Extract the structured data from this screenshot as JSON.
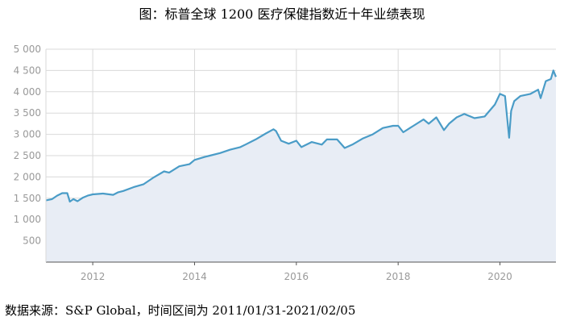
{
  "title": "图：标普全球 1200 医疗保健指数近十年业绩表现",
  "source": "数据来源：S&P Global，时间区间为 2011/01/31-2021/02/05",
  "chart_data": {
    "type": "area",
    "title": "图：标普全球 1200 医疗保健指数近十年业绩表现",
    "xlabel": "",
    "ylabel": "",
    "ylim": [
      0,
      5000
    ],
    "xlim": [
      2011.08,
      2021.1
    ],
    "x_ticks": [
      2012,
      2014,
      2016,
      2018,
      2020
    ],
    "x_tick_labels": [
      "2012",
      "2014",
      "2016",
      "2018",
      "2020"
    ],
    "y_ticks": [
      500,
      1000,
      1500,
      2000,
      2500,
      3000,
      3500,
      4000,
      4500,
      5000
    ],
    "y_tick_labels": [
      "500",
      "1 000",
      "1 500",
      "2 000",
      "2 500",
      "3 000",
      "3 500",
      "4 000",
      "4 500",
      "5 000"
    ],
    "grid": true,
    "legend": "none",
    "colors": {
      "line": "#4a9cc7",
      "fill": "#e8edf5",
      "grid": "#d9d9d9",
      "axis": "#555555"
    },
    "series": [
      {
        "x": [
          2011.08,
          2011.2,
          2011.3,
          2011.4,
          2011.5,
          2011.55,
          2011.62,
          2011.7,
          2011.8,
          2011.9,
          2012.0,
          2012.2,
          2012.4,
          2012.5,
          2012.6,
          2012.8,
          2013.0,
          2013.2,
          2013.4,
          2013.5,
          2013.7,
          2013.9,
          2014.0,
          2014.2,
          2014.3,
          2014.5,
          2014.7,
          2014.9,
          2015.0,
          2015.2,
          2015.4,
          2015.55,
          2015.6,
          2015.7,
          2015.85,
          2016.0,
          2016.1,
          2016.3,
          2016.5,
          2016.6,
          2016.8,
          2016.95,
          2017.1,
          2017.3,
          2017.5,
          2017.7,
          2017.9,
          2018.0,
          2018.1,
          2018.3,
          2018.5,
          2018.6,
          2018.75,
          2018.9,
          2019.0,
          2019.15,
          2019.3,
          2019.5,
          2019.7,
          2019.9,
          2020.0,
          2020.1,
          2020.18,
          2020.22,
          2020.28,
          2020.4,
          2020.6,
          2020.75,
          2020.8,
          2020.9,
          2021.0,
          2021.05,
          2021.1
        ],
        "values": [
          1450,
          1480,
          1560,
          1620,
          1620,
          1420,
          1480,
          1430,
          1510,
          1560,
          1590,
          1610,
          1580,
          1640,
          1670,
          1760,
          1830,
          1990,
          2130,
          2100,
          2250,
          2300,
          2400,
          2470,
          2500,
          2560,
          2640,
          2700,
          2760,
          2880,
          3020,
          3120,
          3080,
          2850,
          2780,
          2850,
          2700,
          2820,
          2760,
          2880,
          2880,
          2680,
          2760,
          2900,
          3000,
          3150,
          3200,
          3200,
          3050,
          3200,
          3350,
          3250,
          3400,
          3100,
          3250,
          3400,
          3480,
          3380,
          3420,
          3700,
          3950,
          3900,
          2920,
          3550,
          3780,
          3900,
          3950,
          4050,
          3850,
          4250,
          4300,
          4500,
          4350
        ]
      }
    ]
  }
}
